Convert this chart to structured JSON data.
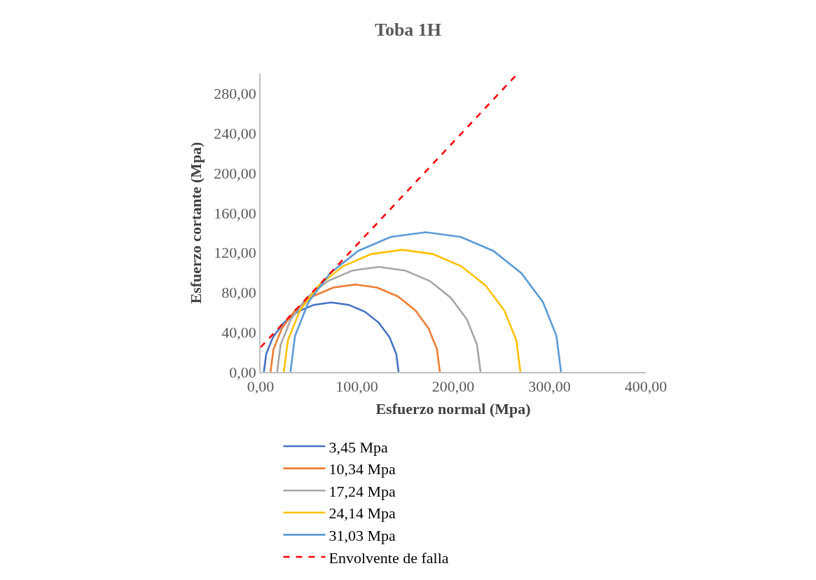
{
  "chart_data": {
    "type": "line",
    "title": "Toba 1H",
    "xlabel": "Esfuerzo normal (Mpa)",
    "ylabel": "Esfuerzo cortante (Mpa)",
    "xlim": [
      0,
      400
    ],
    "xticks": [
      {
        "value": 0,
        "label": "0,00"
      },
      {
        "value": 100,
        "label": "100,00"
      },
      {
        "value": 200,
        "label": "200,00"
      },
      {
        "value": 300,
        "label": "300,00"
      },
      {
        "value": 400,
        "label": "400,00"
      }
    ],
    "ylim": [
      0,
      300
    ],
    "yticks": [
      {
        "value": 0,
        "label": "0,00"
      },
      {
        "value": 40,
        "label": "40,00"
      },
      {
        "value": 80,
        "label": "80,00"
      },
      {
        "value": 120,
        "label": "120,00"
      },
      {
        "value": 160,
        "label": "160,00"
      },
      {
        "value": 200,
        "label": "200,00"
      },
      {
        "value": 240,
        "label": "240,00"
      },
      {
        "value": 280,
        "label": "280,00"
      }
    ],
    "grid": false,
    "legend": "bottom",
    "marker": "none",
    "series": [
      {
        "name": "3,45 Mpa",
        "color": "#4472c4",
        "line_style": "solid",
        "x": [
          3.45,
          5.9,
          12.9,
          24.0,
          38.5,
          55.3,
          73.4,
          91.5,
          108.4,
          122.8,
          133.9,
          140.9,
          143.3
        ],
        "values": [
          0,
          18.1,
          35.0,
          49.4,
          60.5,
          67.5,
          69.9,
          67.5,
          60.5,
          49.4,
          35.0,
          18.1,
          0
        ]
      },
      {
        "name": "10,34 Mpa",
        "color": "#ed7d31",
        "line_style": "solid",
        "x": [
          10.34,
          13.4,
          22.2,
          36.1,
          54.3,
          75.6,
          98.3,
          121.0,
          142.3,
          160.5,
          174.4,
          183.2,
          186.2
        ],
        "values": [
          0,
          22.7,
          44.0,
          62.2,
          76.1,
          84.9,
          87.9,
          84.9,
          76.1,
          62.2,
          44.0,
          22.7,
          0
        ]
      },
      {
        "name": "17,24 Mpa",
        "color": "#a5a5a5",
        "line_style": "solid",
        "x": [
          17.24,
          20.8,
          31.3,
          48.1,
          70.0,
          95.5,
          122.8,
          150.1,
          175.6,
          197.5,
          214.3,
          224.8,
          228.4
        ],
        "values": [
          0,
          27.3,
          52.8,
          74.7,
          91.5,
          102.0,
          105.6,
          102.0,
          91.5,
          74.7,
          52.8,
          27.3,
          0
        ]
      },
      {
        "name": "24,14 Mpa",
        "color": "#ffc000",
        "line_style": "solid",
        "x": [
          24.14,
          28.4,
          40.7,
          60.2,
          85.6,
          115.2,
          147.0,
          178.8,
          208.4,
          233.8,
          253.3,
          265.6,
          269.8
        ],
        "values": [
          0,
          31.8,
          61.4,
          86.8,
          106.3,
          118.6,
          122.8,
          118.6,
          106.3,
          86.8,
          61.4,
          31.8,
          0
        ]
      },
      {
        "name": "31,03 Mpa",
        "color": "#5b9bd5",
        "line_style": "solid",
        "x": [
          31.03,
          35.8,
          49.8,
          72.2,
          101.3,
          135.1,
          171.5,
          207.9,
          241.8,
          270.8,
          293.2,
          307.2,
          312.0
        ],
        "values": [
          0,
          36.4,
          70.3,
          99.3,
          121.7,
          135.7,
          140.5,
          135.7,
          121.7,
          99.3,
          70.3,
          36.4,
          0
        ]
      },
      {
        "name": "Envolvente de falla",
        "color": "#ff0000",
        "line_style": "dashed",
        "x": [
          0,
          265
        ],
        "values": [
          24.7,
          298
        ]
      }
    ]
  }
}
